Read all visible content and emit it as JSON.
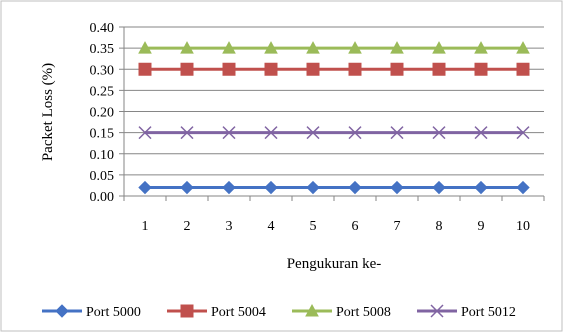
{
  "chart_data": {
    "type": "line",
    "x": [
      1,
      2,
      3,
      4,
      5,
      6,
      7,
      8,
      9,
      10
    ],
    "xlabel": "Pengukuran ke-",
    "ylabel": "Packet Loss (%)",
    "ylim": [
      0,
      0.4
    ],
    "yticks": [
      "0.00",
      "0.05",
      "0.10",
      "0.15",
      "0.20",
      "0.25",
      "0.30",
      "0.35",
      "0.40"
    ],
    "grid": "horizontal",
    "legend_position": "bottom",
    "series": [
      {
        "name": "Port 5000",
        "color": "#4472C4",
        "marker": "diamond",
        "values": [
          0.02,
          0.02,
          0.02,
          0.02,
          0.02,
          0.02,
          0.02,
          0.02,
          0.02,
          0.02
        ]
      },
      {
        "name": "Port 5004",
        "color": "#C0504D",
        "marker": "square",
        "values": [
          0.3,
          0.3,
          0.3,
          0.3,
          0.3,
          0.3,
          0.3,
          0.3,
          0.3,
          0.3
        ]
      },
      {
        "name": "Port 5008",
        "color": "#9BBB59",
        "marker": "triangle",
        "values": [
          0.35,
          0.35,
          0.35,
          0.35,
          0.35,
          0.35,
          0.35,
          0.35,
          0.35,
          0.35
        ]
      },
      {
        "name": "Port 5012",
        "color": "#8064A2",
        "marker": "x",
        "values": [
          0.15,
          0.15,
          0.15,
          0.15,
          0.15,
          0.15,
          0.15,
          0.15,
          0.15,
          0.15
        ]
      }
    ]
  }
}
